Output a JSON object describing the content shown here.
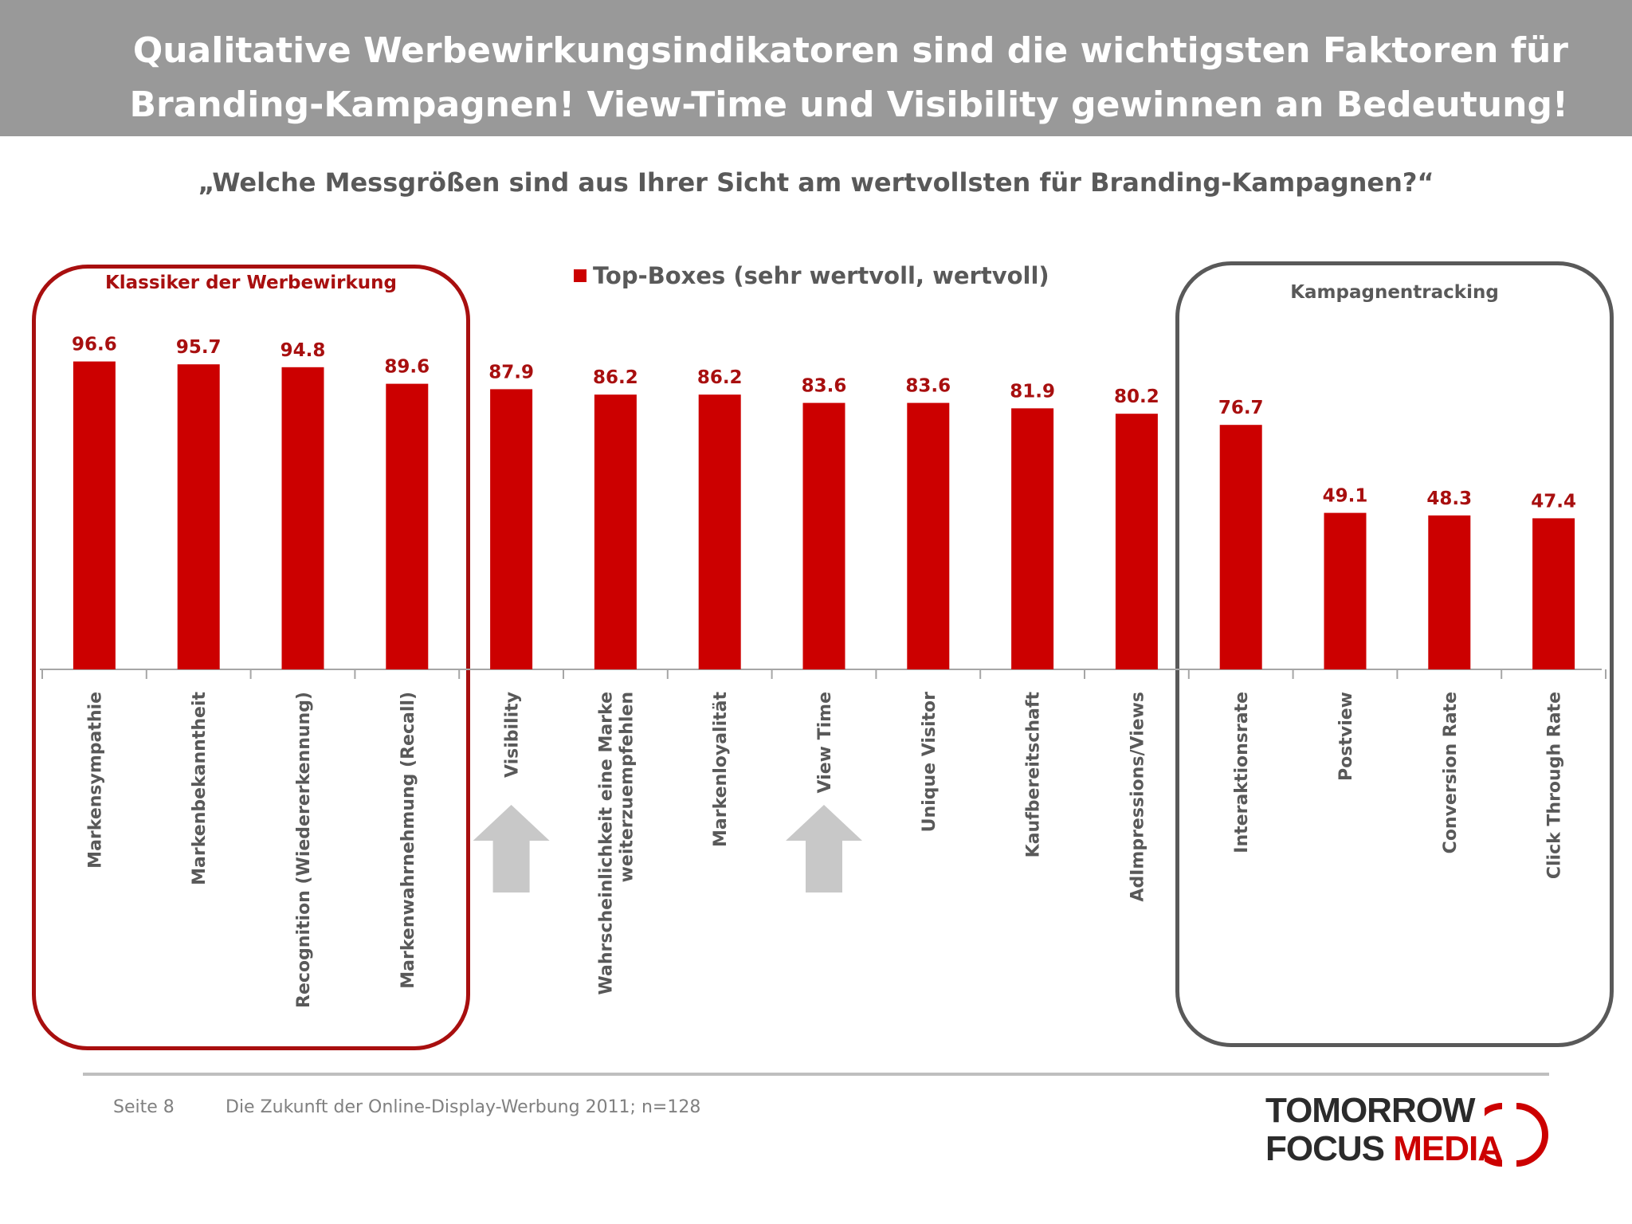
{
  "header": {
    "title": "Qualitative Werbewirkungsindikatoren sind die wichtigsten Faktoren für Branding-Kampagnen! View-Time und Visibility gewinnen an Bedeutung!"
  },
  "question": "„Welche Messgrößen sind aus Ihrer Sicht am wertvollsten für Branding-Kampagnen?“",
  "groups": {
    "klassiker": "Klassiker der Werbewirkung",
    "tracking": "Kampagnentracking"
  },
  "footer": {
    "page": "Seite 8",
    "source": "Die Zukunft der Online-Display-Werbung 2011; n=128"
  },
  "logo": {
    "line1": "TOMORROW",
    "line2a": "FOCUS",
    "line2b": "MEDIA"
  },
  "colors": {
    "bar": "#cc0000",
    "label": "#a80f0f",
    "axis_text": "#595959",
    "header_bg": "#999999"
  },
  "chart_data": {
    "type": "bar",
    "categories": [
      [
        "Markensympathie"
      ],
      [
        "Markenbekanntheit"
      ],
      [
        "Recognition (Wiedererkennung)"
      ],
      [
        "Markenwahrnehmung (Recall)"
      ],
      [
        "Visibility"
      ],
      [
        "Wahrscheinlichkeit eine Marke",
        "weiterzuempfehlen"
      ],
      [
        "Markenloyalität"
      ],
      [
        "View Time"
      ],
      [
        "Unique Visitor"
      ],
      [
        "Kaufbereitschaft"
      ],
      [
        "AdImpressions/Views"
      ],
      [
        "Interaktionsrate"
      ],
      [
        "Postview"
      ],
      [
        "Conversion Rate"
      ],
      [
        "Click Through Rate"
      ]
    ],
    "series": [
      {
        "name": "Top-Boxes (sehr wertvoll, wertvoll)",
        "values": [
          96.6,
          95.7,
          94.8,
          89.6,
          87.9,
          86.2,
          86.2,
          83.6,
          83.6,
          81.9,
          80.2,
          76.7,
          49.1,
          48.3,
          47.4
        ]
      }
    ],
    "value_labels": [
      "96.6",
      "95.7",
      "94.8",
      "89.6",
      "87.9",
      "86.2",
      "86.2",
      "83.6",
      "83.6",
      "81.9",
      "80.2",
      "76.7",
      "49.1",
      "48.3",
      "47.4"
    ],
    "highlighted_categories": [
      "Visibility",
      "View Time"
    ],
    "ylim": [
      0,
      100
    ],
    "grid": false,
    "legend_position": "top-center"
  }
}
